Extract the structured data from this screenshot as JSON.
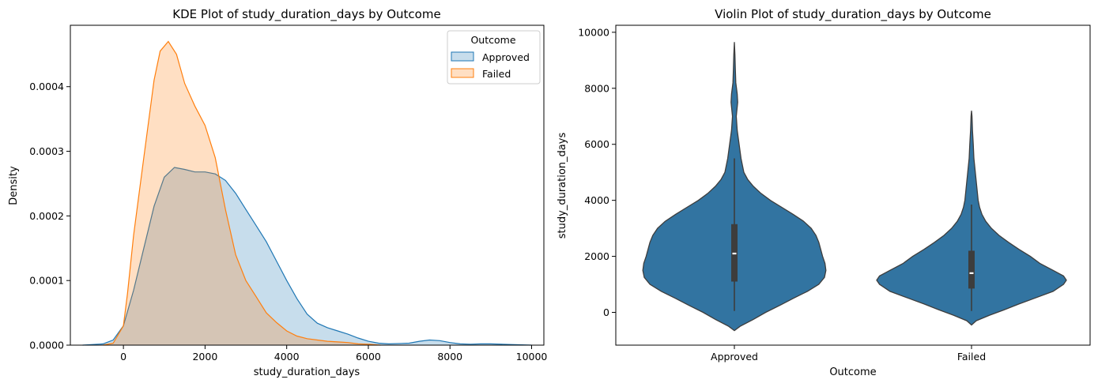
{
  "charts": {
    "kde": {
      "type": "area",
      "title": "KDE Plot of study_duration_days by Outcome",
      "xlabel": "study_duration_days",
      "ylabel": "Density",
      "xlim": [
        -1300,
        10300
      ],
      "ylim": [
        0,
        0.000495
      ],
      "x_ticks": [
        0,
        2000,
        4000,
        6000,
        8000,
        10000
      ],
      "y_ticks": [
        0.0,
        0.0001,
        0.0002,
        0.0003,
        0.0004
      ],
      "y_tick_labels": [
        "0.0000",
        "0.0001",
        "0.0002",
        "0.0003",
        "0.0004"
      ],
      "legend": {
        "title": "Outcome",
        "position": "top-right"
      },
      "series": [
        {
          "name": "Approved",
          "color": "#1f77b4",
          "points": [
            [
              -1000,
              0.0
            ],
            [
              -500,
              2e-06
            ],
            [
              -250,
              8e-06
            ],
            [
              0,
              3e-05
            ],
            [
              250,
              8.5e-05
            ],
            [
              500,
              0.00015
            ],
            [
              750,
              0.000215
            ],
            [
              1000,
              0.00026
            ],
            [
              1250,
              0.000275
            ],
            [
              1500,
              0.000272
            ],
            [
              1750,
              0.000268
            ],
            [
              2000,
              0.000268
            ],
            [
              2250,
              0.000265
            ],
            [
              2500,
              0.000255
            ],
            [
              2750,
              0.000235
            ],
            [
              3000,
              0.00021
            ],
            [
              3250,
              0.000185
            ],
            [
              3500,
              0.00016
            ],
            [
              3750,
              0.00013
            ],
            [
              4000,
              0.0001
            ],
            [
              4250,
              7.2e-05
            ],
            [
              4500,
              4.8e-05
            ],
            [
              4750,
              3.4e-05
            ],
            [
              5000,
              2.7e-05
            ],
            [
              5250,
              2.2e-05
            ],
            [
              5500,
              1.7e-05
            ],
            [
              5750,
              1.1e-05
            ],
            [
              6000,
              6e-06
            ],
            [
              6250,
              3e-06
            ],
            [
              6500,
              2e-06
            ],
            [
              7000,
              3e-06
            ],
            [
              7250,
              6e-06
            ],
            [
              7500,
              8e-06
            ],
            [
              7750,
              7e-06
            ],
            [
              8000,
              4e-06
            ],
            [
              8250,
              2e-06
            ],
            [
              8500,
              1.5e-06
            ],
            [
              8750,
              2e-06
            ],
            [
              9000,
              2e-06
            ],
            [
              9500,
              1e-06
            ],
            [
              10000,
              0.0
            ]
          ]
        },
        {
          "name": "Failed",
          "color": "#ff7f0e",
          "points": [
            [
              -500,
              0.0
            ],
            [
              -250,
              3e-06
            ],
            [
              0,
              3e-05
            ],
            [
              100,
              8e-05
            ],
            [
              250,
              0.00017
            ],
            [
              500,
              0.00029
            ],
            [
              750,
              0.00041
            ],
            [
              900,
              0.000455
            ],
            [
              1100,
              0.00047
            ],
            [
              1300,
              0.00045
            ],
            [
              1500,
              0.000405
            ],
            [
              1750,
              0.00037
            ],
            [
              2000,
              0.00034
            ],
            [
              2250,
              0.00029
            ],
            [
              2500,
              0.00021
            ],
            [
              2750,
              0.00014
            ],
            [
              3000,
              0.0001
            ],
            [
              3250,
              7.5e-05
            ],
            [
              3500,
              5e-05
            ],
            [
              3750,
              3.5e-05
            ],
            [
              4000,
              2.2e-05
            ],
            [
              4250,
              1.4e-05
            ],
            [
              4500,
              1e-05
            ],
            [
              4750,
              8e-06
            ],
            [
              5000,
              6e-06
            ],
            [
              5250,
              5e-06
            ],
            [
              5500,
              4e-06
            ],
            [
              5750,
              2e-06
            ],
            [
              6000,
              1.5e-06
            ],
            [
              6300,
              0.0
            ]
          ]
        }
      ]
    },
    "violin": {
      "type": "violin",
      "title": "Violin Plot of study_duration_days by Outcome",
      "xlabel": "Outcome",
      "ylabel": "study_duration_days",
      "ylim": [
        -1170,
        10250
      ],
      "y_ticks": [
        0,
        2000,
        4000,
        6000,
        8000,
        10000
      ],
      "categories": [
        "Approved",
        "Failed"
      ],
      "color": "#3274a1",
      "series": [
        {
          "name": "Approved",
          "median": 2100,
          "q1": 1100,
          "q3": 3150,
          "whisker_low": 50,
          "whisker_high": 5500,
          "profile": [
            [
              -650,
              0.0
            ],
            [
              -500,
              0.06
            ],
            [
              -250,
              0.2
            ],
            [
              0,
              0.33
            ],
            [
              250,
              0.48
            ],
            [
              500,
              0.62
            ],
            [
              750,
              0.77
            ],
            [
              1000,
              0.89
            ],
            [
              1250,
              0.95
            ],
            [
              1500,
              0.965
            ],
            [
              1750,
              0.955
            ],
            [
              2000,
              0.93
            ],
            [
              2250,
              0.91
            ],
            [
              2500,
              0.89
            ],
            [
              2750,
              0.86
            ],
            [
              3000,
              0.81
            ],
            [
              3250,
              0.73
            ],
            [
              3500,
              0.62
            ],
            [
              3750,
              0.5
            ],
            [
              4000,
              0.38
            ],
            [
              4250,
              0.28
            ],
            [
              4500,
              0.2
            ],
            [
              4750,
              0.14
            ],
            [
              5000,
              0.1
            ],
            [
              5500,
              0.07
            ],
            [
              6000,
              0.05
            ],
            [
              6500,
              0.03
            ],
            [
              7000,
              0.02
            ],
            [
              7500,
              0.035
            ],
            [
              7800,
              0.03
            ],
            [
              8200,
              0.015
            ],
            [
              8700,
              0.01
            ],
            [
              9200,
              0.006
            ],
            [
              9650,
              0.0
            ]
          ]
        },
        {
          "name": "Failed",
          "median": 1400,
          "q1": 850,
          "q3": 2200,
          "whisker_low": 50,
          "whisker_high": 3850,
          "profile": [
            [
              -450,
              0.0
            ],
            [
              -300,
              0.05
            ],
            [
              -100,
              0.19
            ],
            [
              100,
              0.35
            ],
            [
              300,
              0.5
            ],
            [
              500,
              0.66
            ],
            [
              750,
              0.86
            ],
            [
              1000,
              0.97
            ],
            [
              1150,
              1.0
            ],
            [
              1300,
              0.97
            ],
            [
              1500,
              0.86
            ],
            [
              1750,
              0.72
            ],
            [
              2000,
              0.62
            ],
            [
              2250,
              0.5
            ],
            [
              2500,
              0.39
            ],
            [
              2750,
              0.29
            ],
            [
              3000,
              0.21
            ],
            [
              3250,
              0.15
            ],
            [
              3500,
              0.11
            ],
            [
              3750,
              0.085
            ],
            [
              4000,
              0.07
            ],
            [
              4500,
              0.055
            ],
            [
              5000,
              0.04
            ],
            [
              5500,
              0.025
            ],
            [
              6000,
              0.018
            ],
            [
              6500,
              0.01
            ],
            [
              7000,
              0.005
            ],
            [
              7200,
              0.0
            ]
          ]
        }
      ]
    }
  }
}
